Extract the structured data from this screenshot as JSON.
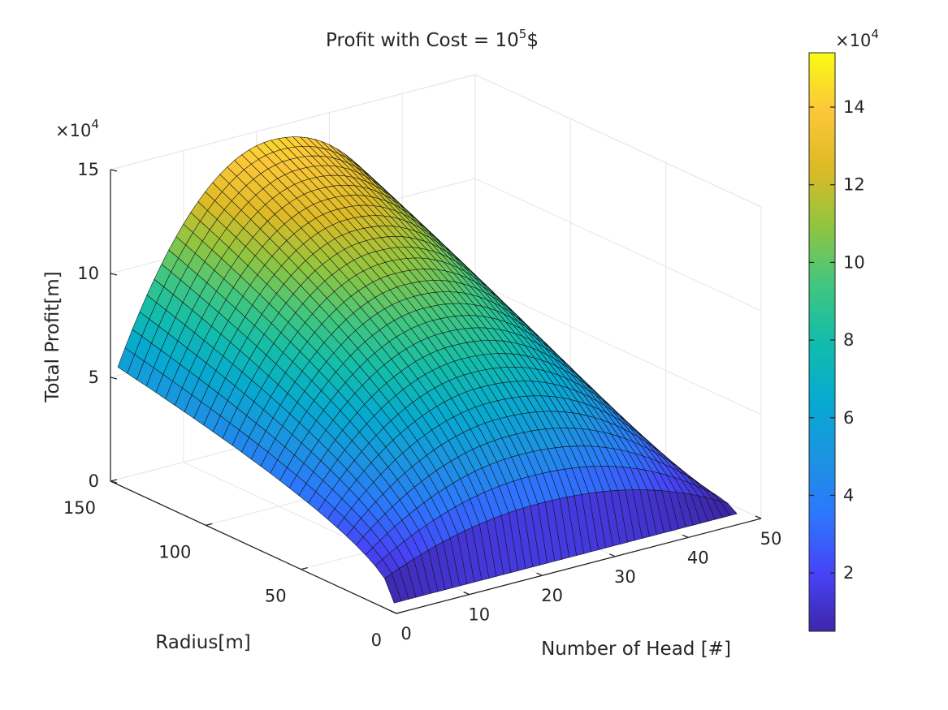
{
  "chart_data": [
    {
      "type": "surface3d",
      "title_main": "Profit with Cost = 10",
      "title_exponent": "5",
      "title_suffix": "$",
      "xlabel": "Number of Head [#]",
      "ylabel": "Radius[m]",
      "zlabel": "Total Profit[m]",
      "xlim": [
        0,
        50
      ],
      "ylim": [
        0,
        150
      ],
      "zlim": [
        0,
        150000
      ],
      "xticks": [
        0,
        10,
        20,
        30,
        40,
        50
      ],
      "yticks": [
        0,
        50,
        100,
        150
      ],
      "zticks": [
        0,
        50000,
        100000,
        150000
      ],
      "xtick_labels": [
        "0",
        "10",
        "20",
        "30",
        "40",
        "50"
      ],
      "ytick_labels": [
        "0",
        "50",
        "100",
        "150"
      ],
      "ztick_labels": [
        "0",
        "5",
        "10",
        "15"
      ],
      "z_multiplier_base": "×10",
      "z_multiplier_exp": "4",
      "grid": true,
      "colormap": "parula",
      "surface_x_range": [
        1,
        48
      ],
      "surface_y_range": [
        5,
        150
      ],
      "surface_peak": {
        "x": 22,
        "y": 150,
        "z": 144000
      },
      "surface_samples": [
        {
          "x": 1,
          "y": 150,
          "z": 54000
        },
        {
          "x": 1,
          "y": 5,
          "z": 2000
        },
        {
          "x": 22,
          "y": 150,
          "z": 144000
        },
        {
          "x": 22,
          "y": 5,
          "z": 11000
        },
        {
          "x": 48,
          "y": 150,
          "z": 18000
        },
        {
          "x": 48,
          "y": 5,
          "z": 2000
        }
      ]
    },
    {
      "type": "colorbar",
      "ylim": [
        5000,
        154000
      ],
      "ticks": [
        2,
        4,
        6,
        8,
        10,
        12,
        14
      ],
      "tick_labels": [
        "2",
        "4",
        "6",
        "8",
        "10",
        "12",
        "14"
      ],
      "multiplier_base": "×10",
      "multiplier_exp": "4"
    }
  ]
}
